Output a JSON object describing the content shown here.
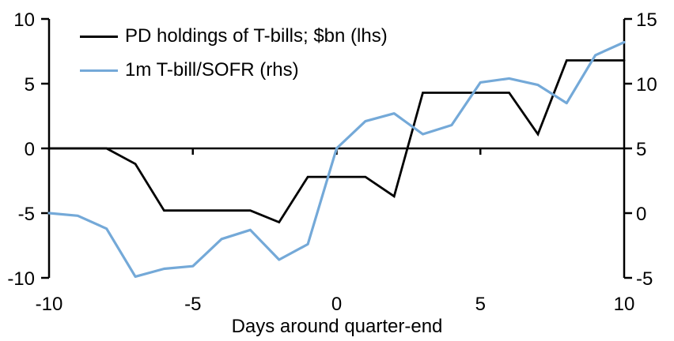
{
  "chart_data": {
    "type": "line",
    "xlabel": "Days around quarter-end",
    "x": [
      -10,
      -9,
      -8,
      -7,
      -6,
      -5,
      -4,
      -3,
      -2,
      -1,
      0,
      1,
      2,
      3,
      4,
      5,
      6,
      7,
      8,
      9,
      10
    ],
    "x_ticks": [
      -10,
      -5,
      0,
      5,
      10
    ],
    "left_axis": {
      "min": -10,
      "max": 10,
      "ticks": [
        10,
        5,
        0,
        -5,
        -10
      ]
    },
    "right_axis": {
      "min": -5,
      "max": 15,
      "ticks": [
        15,
        10,
        5,
        0,
        -5
      ]
    },
    "series": [
      {
        "name": "PD holdings of T-bills; $bn (lhs)",
        "axis": "left",
        "color": "#000000",
        "values": [
          0,
          0,
          0,
          -1.2,
          -4.8,
          -4.8,
          -4.8,
          -4.8,
          -5.7,
          -2.2,
          -2.2,
          -2.2,
          -3.7,
          4.3,
          4.3,
          4.3,
          4.3,
          1.1,
          6.8,
          6.8,
          6.8
        ]
      },
      {
        "name": "1m T-bill/SOFR (rhs)",
        "axis": "right",
        "color": "#74A9D8",
        "values": [
          0.0,
          -0.2,
          -1.2,
          -4.9,
          -4.3,
          -4.1,
          -2.0,
          -1.3,
          -3.6,
          -2.4,
          5.0,
          7.1,
          7.7,
          6.1,
          6.8,
          10.1,
          10.4,
          9.9,
          8.5,
          12.2,
          13.2
        ]
      }
    ],
    "legend_position": "top-left",
    "grid": false,
    "axis_color": "#000000"
  }
}
